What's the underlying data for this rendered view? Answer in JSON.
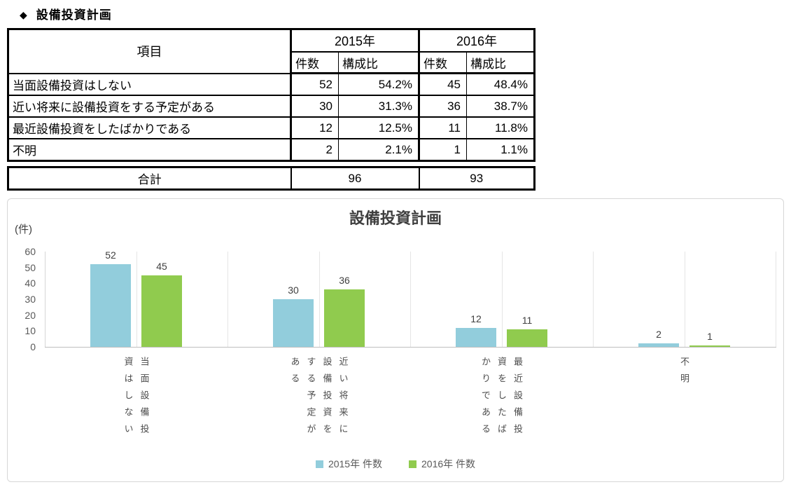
{
  "page_title": {
    "bullet": "◆",
    "text": "設備投資計画"
  },
  "table": {
    "header": {
      "item": "項目",
      "year_2015": "2015年",
      "year_2016": "2016年",
      "count": "件数",
      "ratio": "構成比"
    },
    "rows": [
      {
        "label": "当面設備投資はしない",
        "count_2015": "52",
        "ratio_2015": "54.2%",
        "count_2016": "45",
        "ratio_2016": "48.4%"
      },
      {
        "label": "近い将来に設備投資をする予定がある",
        "count_2015": "30",
        "ratio_2015": "31.3%",
        "count_2016": "36",
        "ratio_2016": "38.7%"
      },
      {
        "label": "最近設備投資をしたばかりである",
        "count_2015": "12",
        "ratio_2015": "12.5%",
        "count_2016": "11",
        "ratio_2016": "11.8%"
      },
      {
        "label": "不明",
        "count_2015": "2",
        "ratio_2015": "2.1%",
        "count_2016": "1",
        "ratio_2016": "1.1%"
      }
    ],
    "total": {
      "label": "合計",
      "total_2015": "96",
      "total_2016": "93"
    }
  },
  "chart_data": {
    "type": "bar",
    "title": "設備投資計画",
    "unit_label": "(件)",
    "categories": [
      "当面設備投資はしない",
      "近い将来に設備投資をする予定がある",
      "最近設備投資をしたばかりである",
      "不明"
    ],
    "series": [
      {
        "name": "2015年 件数",
        "color": "#92CDDC",
        "values": [
          52,
          30,
          12,
          2
        ]
      },
      {
        "name": "2016年 件数",
        "color": "#90CB4E",
        "values": [
          45,
          36,
          11,
          1
        ]
      }
    ],
    "ylim": [
      0,
      60
    ],
    "ytick_step": 10,
    "grid": "vertical-only",
    "legend_position": "bottom",
    "value_labels": true,
    "category_label_style": "vertical-tategaki"
  }
}
